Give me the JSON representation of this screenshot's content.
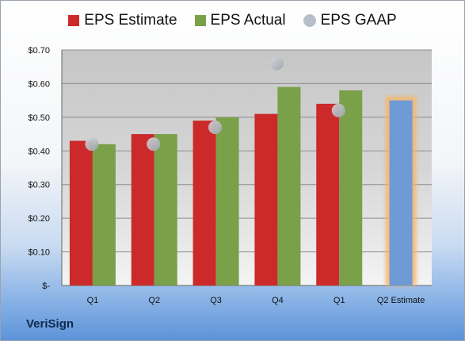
{
  "chart_data": {
    "type": "bar",
    "categories": [
      "Q1",
      "Q2",
      "Q3",
      "Q4",
      "Q1",
      "Q2 Estimate"
    ],
    "series": [
      {
        "name": "EPS Estimate",
        "type": "bar",
        "color": "#cc2a2a",
        "values": [
          0.43,
          0.45,
          0.49,
          0.51,
          0.54,
          null
        ]
      },
      {
        "name": "EPS Actual",
        "type": "bar",
        "color": "#7aa04a",
        "values": [
          0.42,
          0.45,
          0.5,
          0.59,
          0.58,
          null
        ]
      },
      {
        "name": "EPS GAAP",
        "type": "scatter",
        "color": "#b4b9c2",
        "values": [
          0.42,
          0.42,
          0.47,
          0.66,
          0.52,
          null
        ]
      },
      {
        "name": "",
        "type": "bar",
        "color": "#6f9ad6",
        "highlight": "#f5b56b",
        "values": [
          null,
          null,
          null,
          null,
          null,
          0.55
        ]
      }
    ],
    "yticks": [
      "$-",
      "$0.10",
      "$0.20",
      "$0.30",
      "$0.40",
      "$0.50",
      "$0.60",
      "$0.70"
    ],
    "ylim": [
      0,
      0.7
    ],
    "grid": true,
    "legend": "top"
  },
  "legend": {
    "estimate": "EPS Estimate",
    "actual": "EPS Actual",
    "gaap": "EPS GAAP"
  },
  "brand": "VeriSign"
}
